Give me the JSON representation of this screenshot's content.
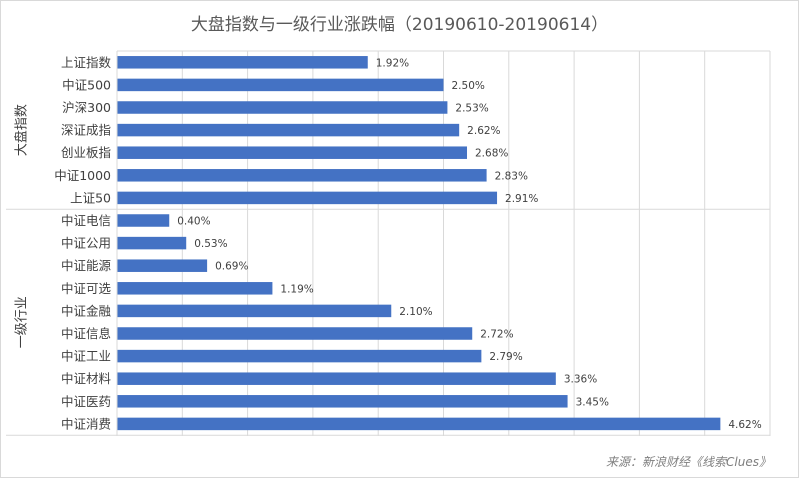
{
  "chart_data": {
    "type": "bar",
    "orientation": "horizontal",
    "title": "大盘指数与一级行业涨跌幅（20190610-20190614）",
    "source": "来源：新浪财经《线索Clues》",
    "value_format": "percent_2dp",
    "xlim": [
      0,
      5
    ],
    "grid": true,
    "groups": [
      {
        "name": "大盘指数",
        "categories": [
          "上证指数",
          "中证500",
          "沪深300",
          "深证成指",
          "创业板指",
          "中证1000",
          "上证50"
        ],
        "values": [
          1.92,
          2.5,
          2.53,
          2.62,
          2.68,
          2.83,
          2.91
        ]
      },
      {
        "name": "一级行业",
        "categories": [
          "中证电信",
          "中证公用",
          "中证能源",
          "中证可选",
          "中证金融",
          "中证信息",
          "中证工业",
          "中证材料",
          "中证医药",
          "中证消费"
        ],
        "values": [
          0.4,
          0.53,
          0.69,
          1.19,
          2.1,
          2.72,
          2.79,
          3.36,
          3.45,
          4.62
        ]
      }
    ],
    "colors": {
      "bar": "#4472c4",
      "grid": "#d9d9d9",
      "text": "#404040"
    }
  }
}
